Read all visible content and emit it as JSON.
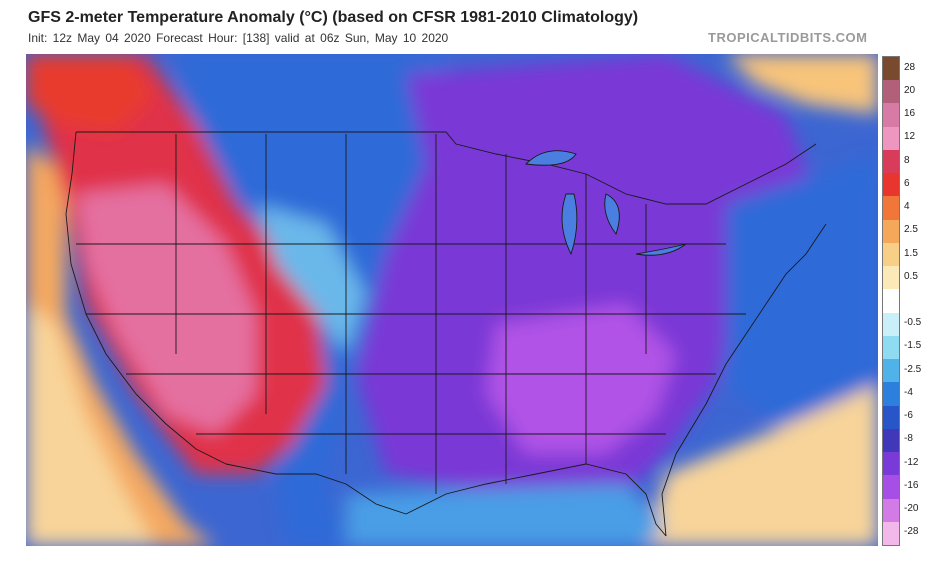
{
  "header": {
    "title": "GFS 2-meter Temperature Anomaly (°C) (based on CFSR 1981-2010 Climatology)",
    "subtitle": "Init: 12z May 04 2020   Forecast Hour: [138]   valid at 06z Sun, May 10 2020",
    "credit": "TROPICALTIDBITS.COM"
  },
  "colorbar": {
    "units": "°C",
    "entries": [
      {
        "label": "28",
        "color": "#7a4a2e"
      },
      {
        "label": "20",
        "color": "#b2607a"
      },
      {
        "label": "16",
        "color": "#d77aa6"
      },
      {
        "label": "12",
        "color": "#ee96bf"
      },
      {
        "label": "8",
        "color": "#d93c5a"
      },
      {
        "label": "6",
        "color": "#e8362e"
      },
      {
        "label": "4",
        "color": "#f0763a"
      },
      {
        "label": "2.5",
        "color": "#f5a85a"
      },
      {
        "label": "1.5",
        "color": "#f8cf86"
      },
      {
        "label": "0.5",
        "color": "#fbe9b8"
      },
      {
        "label": "",
        "color": "#ffffff"
      },
      {
        "label": "-0.5",
        "color": "#c9f0f8"
      },
      {
        "label": "-1.5",
        "color": "#8fdcf2"
      },
      {
        "label": "-2.5",
        "color": "#4fb3ea"
      },
      {
        "label": "-4",
        "color": "#2c7fdc"
      },
      {
        "label": "-6",
        "color": "#2856c8"
      },
      {
        "label": "-8",
        "color": "#4038b8"
      },
      {
        "label": "-12",
        "color": "#7a3ad8"
      },
      {
        "label": "-16",
        "color": "#a64ee6"
      },
      {
        "label": "-20",
        "color": "#d27ae6"
      },
      {
        "label": "-28",
        "color": "#f2b8ea"
      }
    ]
  },
  "map": {
    "region": "Contiguous United States and surrounding areas",
    "warm_color": "#e0324a",
    "cold_color": "#7d3ad6"
  }
}
